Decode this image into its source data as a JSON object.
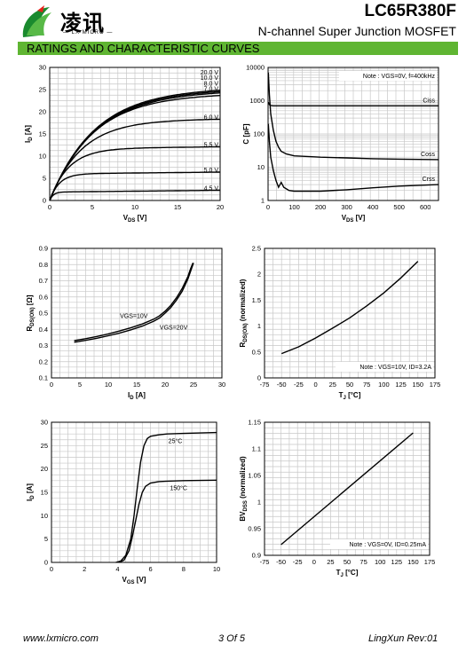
{
  "header": {
    "logo_text": "凌讯",
    "logo_sub": "— LX MICRO —",
    "part_number": "LC65R380F",
    "description": "N-channel Super Junction MOSFET",
    "section_title": "RATINGS AND CHARACTERISTIC CURVES"
  },
  "footer": {
    "website": "www.lxmicro.com",
    "page": "3 Of 5",
    "revision": "LingXun  Rev:01"
  },
  "chart_data": [
    {
      "id": "output",
      "type": "line",
      "xlabel": "VDS [V]",
      "ylabel": "ID [A]",
      "xlim": [
        0,
        20
      ],
      "ylim": [
        0,
        30
      ],
      "xticks": [
        0,
        5,
        10,
        15,
        20
      ],
      "yticks": [
        0,
        5,
        10,
        15,
        20,
        25,
        30
      ],
      "grid": true,
      "series": [
        {
          "name": "20.0 V",
          "label": "20.0 V",
          "sat": 25.0,
          "k": 0.19
        },
        {
          "name": "10.0 V",
          "label": "10.0 V",
          "sat": 24.7,
          "k": 0.19
        },
        {
          "name": "8.0 V",
          "label": "8.0 V",
          "sat": 24.4,
          "k": 0.19
        },
        {
          "name": "7.0 V",
          "label": "7.0 V",
          "sat": 23.7,
          "k": 0.2
        },
        {
          "name": "6.0 V",
          "label": "6.0 V",
          "sat": 18.0,
          "k": 0.27
        },
        {
          "name": "5.5 V",
          "label": "5.5 V",
          "sat": 11.7,
          "k": 0.45
        },
        {
          "name": "5.0 V",
          "label": "5.0 V",
          "sat": 6.0,
          "k": 0.9
        },
        {
          "name": "4.5 V",
          "label": "4.5 V",
          "sat": 1.9,
          "k": 2.5
        }
      ]
    },
    {
      "id": "capacitance",
      "type": "line",
      "xlabel": "VDS [V]",
      "ylabel": "C [pF]",
      "xlim": [
        0,
        650
      ],
      "ylim": [
        1,
        10000
      ],
      "yscale": "log",
      "xticks": [
        0,
        100,
        200,
        300,
        400,
        500,
        600
      ],
      "yticks": [
        1,
        10,
        100,
        1000,
        10000
      ],
      "note": "Note : VGS=0V, f=400kHz",
      "grid": true,
      "series": [
        {
          "name": "Ciss",
          "x": [
            1,
            5,
            10,
            20,
            30,
            50,
            100,
            200,
            300,
            400,
            500,
            650
          ],
          "y": [
            900,
            760,
            720,
            700,
            700,
            700,
            700,
            700,
            700,
            700,
            700,
            700
          ]
        },
        {
          "name": "Coss",
          "x": [
            1,
            5,
            10,
            20,
            30,
            40,
            50,
            70,
            100,
            200,
            300,
            400,
            500,
            650
          ],
          "y": [
            7000,
            1500,
            400,
            130,
            60,
            40,
            30,
            25,
            22,
            20,
            19,
            18,
            17.5,
            17
          ]
        },
        {
          "name": "Crss",
          "x": [
            1,
            5,
            10,
            20,
            30,
            40,
            50,
            60,
            80,
            100,
            200,
            300,
            400,
            500,
            650
          ],
          "y": [
            200,
            60,
            20,
            8,
            4,
            2.5,
            3.5,
            2.5,
            2,
            1.9,
            1.9,
            2.1,
            2.4,
            2.7,
            3
          ]
        }
      ]
    },
    {
      "id": "rdson-id",
      "type": "line",
      "xlabel": "ID [A]",
      "ylabel": "RDS(ON) [Ω]",
      "xlim": [
        0,
        30
      ],
      "ylim": [
        0.1,
        0.9
      ],
      "xticks": [
        0,
        5,
        10,
        15,
        20,
        25,
        30
      ],
      "yticks": [
        0.1,
        0.2,
        0.3,
        0.4,
        0.5,
        0.6,
        0.7,
        0.8,
        0.9
      ],
      "grid": true,
      "series": [
        {
          "name": "VGS=10V",
          "x": [
            4,
            6,
            8,
            10,
            12,
            14,
            16,
            18,
            19,
            20,
            21,
            22,
            23,
            24,
            24.5,
            25
          ],
          "y": [
            0.32,
            0.332,
            0.345,
            0.36,
            0.377,
            0.397,
            0.42,
            0.45,
            0.47,
            0.5,
            0.535,
            0.58,
            0.635,
            0.71,
            0.76,
            0.81
          ]
        },
        {
          "name": "VGS=20V",
          "x": [
            4,
            6,
            8,
            10,
            12,
            14,
            16,
            18,
            19,
            20,
            21,
            22,
            23,
            24,
            24.5,
            24.9
          ],
          "y": [
            0.33,
            0.342,
            0.356,
            0.372,
            0.39,
            0.41,
            0.433,
            0.463,
            0.483,
            0.512,
            0.548,
            0.595,
            0.652,
            0.725,
            0.775,
            0.81
          ]
        }
      ]
    },
    {
      "id": "rdson-temp",
      "type": "line",
      "xlabel": "TJ [°C]",
      "ylabel": "RDS(ON) (normalized)",
      "xlim": [
        -75,
        175
      ],
      "ylim": [
        0,
        2.5
      ],
      "xticks": [
        -75,
        -50,
        -25,
        0,
        25,
        50,
        75,
        100,
        125,
        150,
        175
      ],
      "yticks": [
        0,
        0.5,
        1,
        1.5,
        2,
        2.5
      ],
      "note": "Note : VGS=10V, ID=3.2A",
      "grid": true,
      "series": [
        {
          "name": "",
          "x": [
            -50,
            -25,
            0,
            25,
            50,
            75,
            100,
            125,
            150
          ],
          "y": [
            0.47,
            0.6,
            0.77,
            0.96,
            1.16,
            1.39,
            1.64,
            1.93,
            2.25
          ]
        }
      ]
    },
    {
      "id": "transfer",
      "type": "line",
      "xlabel": "VGS [V]",
      "ylabel": "ID [A]",
      "xlim": [
        0,
        10
      ],
      "ylim": [
        0,
        30
      ],
      "xticks": [
        0,
        2,
        4,
        6,
        8,
        10
      ],
      "yticks": [
        0,
        5,
        10,
        15,
        20,
        25,
        30
      ],
      "grid": true,
      "series": [
        {
          "name": "25°C",
          "x": [
            3.9,
            4.2,
            4.5,
            4.8,
            5.0,
            5.2,
            5.4,
            5.6,
            5.8,
            6.0,
            6.5,
            7,
            8,
            10
          ],
          "y": [
            0,
            0.3,
            1.5,
            5,
            10,
            16,
            21.5,
            25,
            26.5,
            27,
            27.3,
            27.5,
            27.6,
            27.8
          ]
        },
        {
          "name": "150°C",
          "x": [
            4.1,
            4.4,
            4.7,
            4.9,
            5.1,
            5.3,
            5.5,
            5.7,
            6.0,
            6.5,
            7,
            8,
            10
          ],
          "y": [
            0,
            0.5,
            2.5,
            5.5,
            9,
            12.5,
            15,
            16.3,
            17,
            17.3,
            17.4,
            17.5,
            17.6
          ]
        }
      ]
    },
    {
      "id": "bvdss-temp",
      "type": "line",
      "xlabel": "TJ [°C]",
      "ylabel": "BVDSS (normalized)",
      "xlim": [
        -75,
        175
      ],
      "ylim": [
        0.9,
        1.15
      ],
      "xticks": [
        -75,
        -50,
        -25,
        0,
        25,
        50,
        75,
        100,
        125,
        150,
        175
      ],
      "yticks": [
        0.9,
        0.95,
        1,
        1.05,
        1.1,
        1.15
      ],
      "note": "Note : VGS=0V, ID=0.25mA",
      "grid": true,
      "series": [
        {
          "name": "",
          "x": [
            -50,
            150
          ],
          "y": [
            0.92,
            1.13
          ]
        }
      ]
    }
  ]
}
